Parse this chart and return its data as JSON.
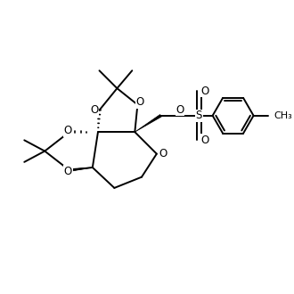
{
  "background_color": "#ffffff",
  "line_width": 1.4,
  "font_size": 8.5,
  "fig_size": [
    3.3,
    3.3
  ],
  "dpi": 100,
  "xlim": [
    0,
    10
  ],
  "ylim": [
    0,
    10
  ]
}
